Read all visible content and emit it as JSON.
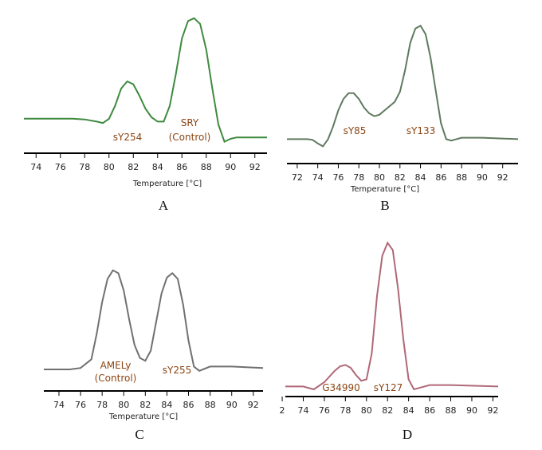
{
  "chart_data": [
    {
      "type": "line",
      "xlabel": "Temperature [°C]",
      "caption": "A",
      "x": [
        73,
        75,
        77,
        78,
        79,
        79.5,
        80,
        80.5,
        81,
        81.5,
        82,
        82.5,
        83,
        83.5,
        84,
        84.5,
        85,
        85.5,
        86,
        86.5,
        87,
        87.5,
        88,
        88.5,
        89,
        89.5,
        90,
        90.5,
        91,
        93
      ],
      "series": [
        {
          "color": "#3f8a3f",
          "values": [
            24,
            24,
            24,
            23.5,
            22,
            21,
            24,
            33,
            45,
            50,
            48,
            40,
            31,
            25,
            22,
            22,
            33,
            55,
            80,
            92,
            94,
            90,
            72,
            45,
            20,
            8,
            10,
            11,
            11,
            11
          ]
        }
      ],
      "xlim": [
        73,
        93
      ],
      "xticks": [
        74,
        76,
        78,
        80,
        82,
        84,
        86,
        88,
        90,
        92
      ],
      "ylim": [
        0,
        100
      ],
      "annotations": [
        "sY254",
        "SRY",
        "(Control)"
      ]
    },
    {
      "type": "line",
      "xlabel": "Temperature [°C]",
      "caption": "B",
      "x": [
        71,
        73,
        73.5,
        74,
        74.5,
        75,
        75.5,
        76,
        76.5,
        77,
        77.5,
        78,
        78.5,
        79,
        79.5,
        80,
        80.5,
        81,
        81.5,
        82,
        82.5,
        83,
        83.5,
        84,
        84.5,
        85,
        85.5,
        86,
        86.5,
        87,
        88,
        90,
        93.5
      ],
      "series": [
        {
          "color": "#5f7a5f",
          "values": [
            17,
            17,
            16.5,
            14,
            12,
            17,
            26,
            37,
            45,
            49,
            49,
            45,
            39,
            35,
            33,
            34,
            37,
            40,
            43,
            50,
            65,
            84,
            94,
            96,
            90,
            73,
            50,
            28,
            17,
            16,
            18,
            18,
            17
          ]
        }
      ],
      "xlim": [
        71,
        93.5
      ],
      "xticks": [
        72,
        74,
        76,
        78,
        80,
        82,
        84,
        86,
        88,
        90,
        92
      ],
      "ylim": [
        0,
        100
      ],
      "annotations": [
        "sY85",
        "sY133"
      ]
    },
    {
      "type": "line",
      "xlabel": "Temperature [°C]",
      "caption": "C",
      "x": [
        72.6,
        75,
        76,
        77,
        77.5,
        78,
        78.5,
        79,
        79.5,
        80,
        80.5,
        81,
        81.5,
        82,
        82.5,
        83,
        83.5,
        84,
        84.5,
        85,
        85.5,
        86,
        86.5,
        87,
        88,
        90,
        92.9
      ],
      "series": [
        {
          "color": "#707070",
          "values": [
            15,
            15,
            16,
            22,
            40,
            62,
            78,
            84,
            82,
            70,
            50,
            32,
            23,
            21,
            28,
            48,
            68,
            79,
            82,
            78,
            60,
            35,
            17,
            14,
            17,
            17,
            16
          ]
        }
      ],
      "xlim": [
        72.6,
        92.9
      ],
      "xticks": [
        74,
        76,
        78,
        80,
        82,
        84,
        86,
        88,
        90,
        92
      ],
      "ylim": [
        0,
        100
      ],
      "annotations": [
        "AMELy",
        "(Control)",
        "sY255"
      ]
    },
    {
      "type": "line",
      "caption": "D",
      "x": [
        72.3,
        74,
        75,
        76,
        77,
        77.5,
        78,
        78.5,
        79,
        79.5,
        80,
        80.5,
        81,
        81.5,
        82,
        82.5,
        83,
        83.5,
        84,
        84.5,
        85,
        86,
        88,
        92.5
      ],
      "series": [
        {
          "color": "#b06878",
          "values": [
            7,
            7,
            5,
            10,
            18,
            21,
            22,
            20,
            15,
            11,
            12,
            30,
            70,
            98,
            107,
            102,
            75,
            40,
            12,
            5,
            6,
            8,
            8,
            7
          ]
        }
      ],
      "xlim": [
        72.3,
        92.5
      ],
      "xticks": [
        {
          "value": 72,
          "label": "2"
        },
        74,
        76,
        78,
        80,
        82,
        84,
        86,
        88,
        90,
        92
      ],
      "ylim": [
        0,
        110
      ],
      "annotations": [
        "G34990",
        "sY127"
      ]
    }
  ]
}
